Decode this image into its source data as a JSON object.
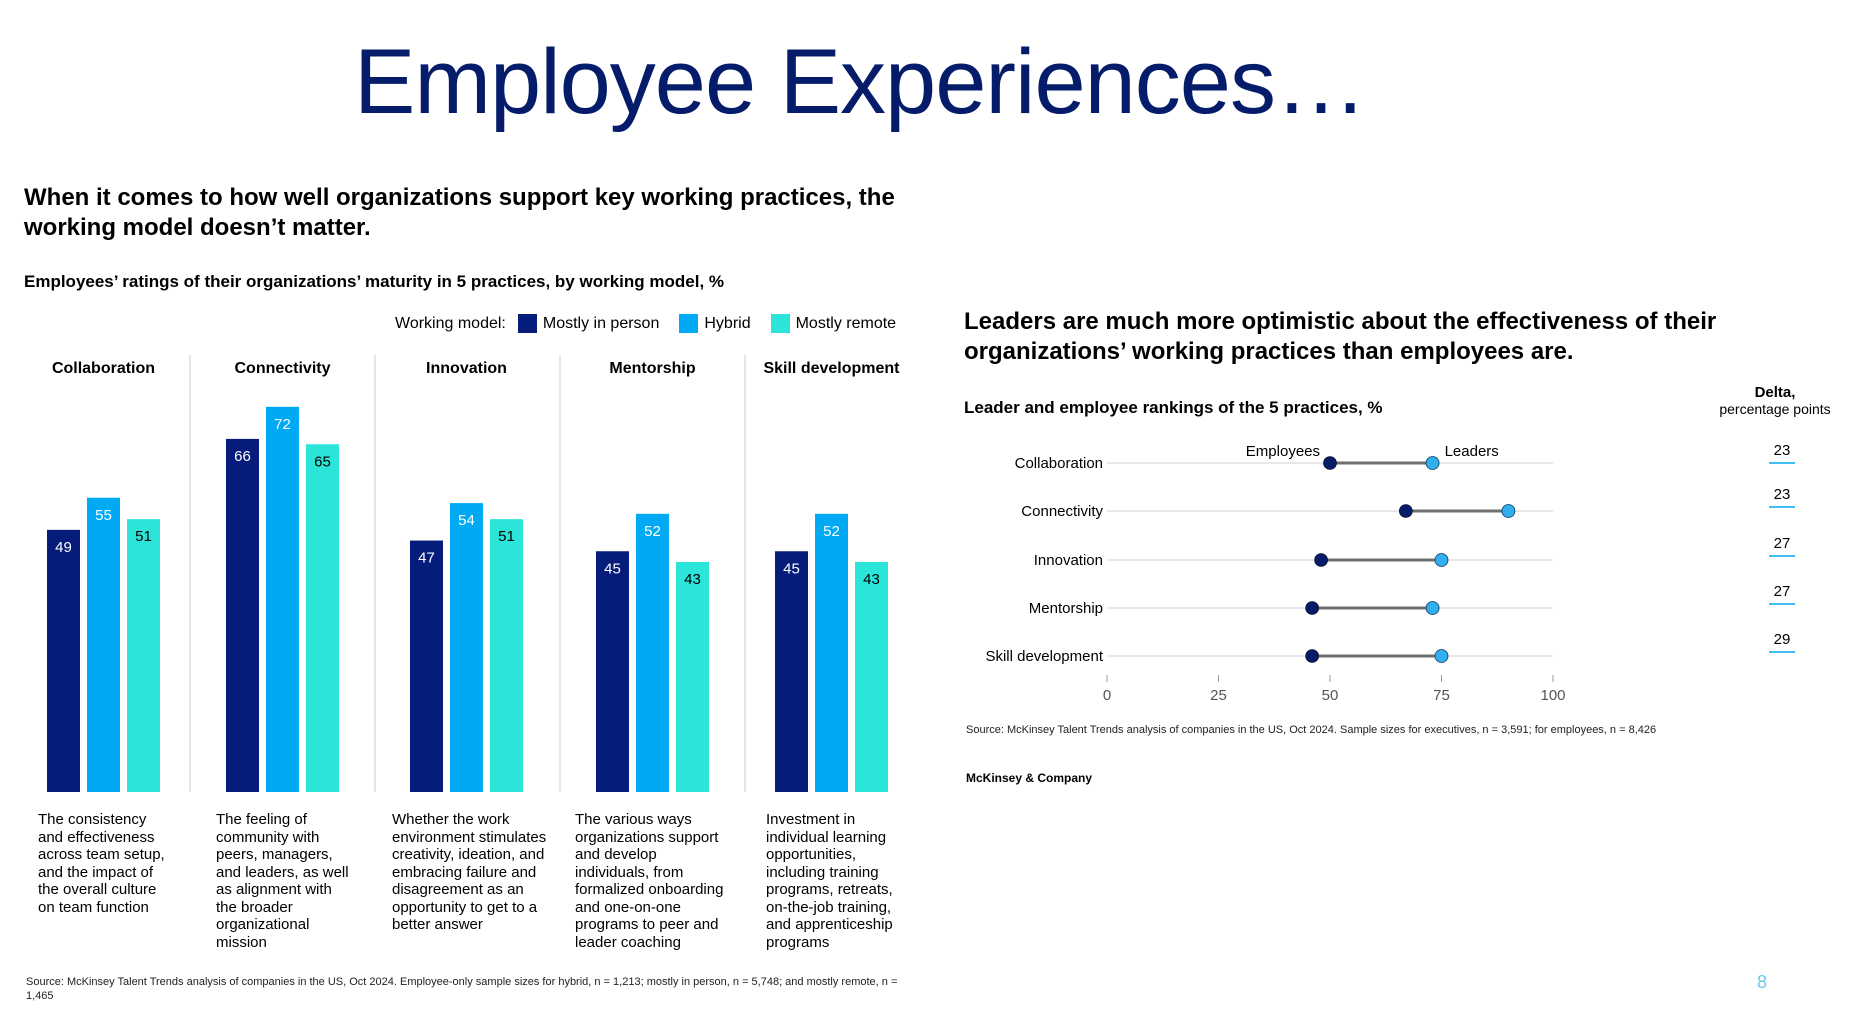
{
  "page": {
    "title": "Employee Experiences…",
    "page_number": "8"
  },
  "left": {
    "headline": "When it comes to how well organizations support key working practices, the working model doesn’t matter.",
    "subhead": "Employees’ ratings of their organizations’ maturity in 5 practices, by working model, %",
    "legend_label": "Working model:",
    "source": "Source: McKinsey Talent Trends analysis of companies in the US, Oct 2024. Employee-only sample sizes for hybrid, n = 1,213; mostly in person, n = 5,748; and mostly remote, n = 1,465",
    "descriptions": [
      "The consistency and effectiveness across team setup, and the impact of the overall culture on team function",
      "The feeling of community with peers, managers, and leaders, as well as alignment with the broader organizational mission",
      "Whether the work environment stimulates creativity, ideation, and embracing failure and disagreement as an opportunity to get to a better answer",
      "The various ways organizations support and develop individuals, from formalized onboarding and one-on-one programs to peer and leader coaching",
      "Investment in individual learning opportunities, including training programs, retreats, on-the-job training, and apprenticeship programs"
    ]
  },
  "right": {
    "headline": "Leaders are much more optimistic about the effectiveness of their organizations’ working practices than employees are.",
    "subhead": "Leader and employee rankings of the 5 practices, %",
    "delta_title": "Delta,",
    "delta_sub": "percentage points",
    "source": "Source: McKinsey Talent Trends analysis of companies in the US, Oct 2024. Sample sizes for executives, n = 3,591; for employees, n = 8,426",
    "brand": "McKinsey & Company"
  },
  "colors": {
    "title": "#051C6B",
    "mostly_in_person": "#051C7A",
    "hybrid": "#00A9F4",
    "mostly_remote": "#2BE6D8",
    "employees_dot": "#051C6B",
    "leaders_dot": "#2FB0EC",
    "delta_underline": "#00A9F4"
  },
  "chart_data": [
    {
      "type": "bar",
      "categories": [
        "Collaboration",
        "Connectivity",
        "Innovation",
        "Mentorship",
        "Skill development"
      ],
      "series": [
        {
          "name": "Mostly in person",
          "values": [
            49,
            66,
            47,
            45,
            45
          ]
        },
        {
          "name": "Hybrid",
          "values": [
            55,
            72,
            54,
            52,
            52
          ]
        },
        {
          "name": "Mostly remote",
          "values": [
            51,
            65,
            51,
            43,
            43
          ]
        }
      ],
      "ylim": [
        0,
        100
      ],
      "legend": "top-right",
      "grid": false
    },
    {
      "type": "scatter",
      "categories": [
        "Collaboration",
        "Connectivity",
        "Innovation",
        "Mentorship",
        "Skill development"
      ],
      "series": [
        {
          "name": "Employees",
          "values": [
            50,
            67,
            48,
            46,
            46
          ]
        },
        {
          "name": "Leaders",
          "values": [
            73,
            90,
            75,
            73,
            75
          ]
        }
      ],
      "delta": [
        23,
        23,
        27,
        27,
        29
      ],
      "xlim": [
        0,
        100
      ],
      "xticks": [
        0,
        25,
        50,
        75,
        100
      ],
      "grid": false
    }
  ]
}
